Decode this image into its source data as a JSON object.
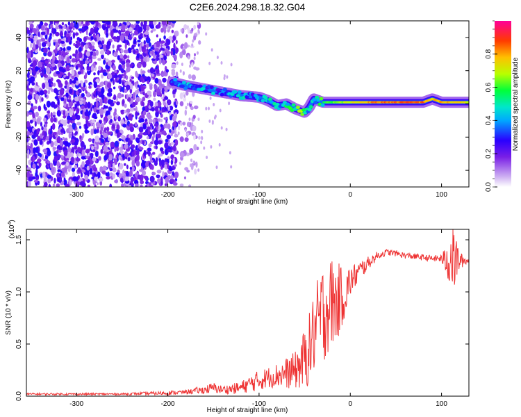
{
  "title": "C2E6.2024.298.18.32.G04",
  "chart_data": [
    {
      "type": "heatmap",
      "xlabel": "Height of straight line (km)",
      "ylabel": "Frequency (Hz)",
      "xlim": [
        -355,
        130
      ],
      "ylim": [
        -50,
        50
      ],
      "x_ticks": [
        -300,
        -200,
        -100,
        0,
        100
      ],
      "y_ticks": [
        -40,
        -20,
        0,
        20,
        40
      ],
      "colorbar": {
        "label": "Normalized spectral amplitude",
        "range": [
          0,
          1
        ],
        "ticks": [
          0.0,
          0.2,
          0.4,
          0.6,
          0.8
        ],
        "tick_labels": [
          "0.0",
          "0.2",
          "0.4",
          "0.6",
          "0.8"
        ],
        "colors": [
          "#ffffff",
          "#8a2be2",
          "#3b00ff",
          "#00aaff",
          "#00e5d0",
          "#00ff44",
          "#c8ff00",
          "#ffaa00",
          "#ff2200",
          "#ff0099"
        ]
      },
      "noise_region": {
        "x": [
          -355,
          -190
        ],
        "amplitude": [
          0.05,
          0.3
        ]
      },
      "signal_trace": {
        "x": [
          -195,
          -180,
          -160,
          -140,
          -120,
          -100,
          -90,
          -80,
          -70,
          -60,
          -55,
          -50,
          -45,
          -40,
          -35,
          -30,
          -20,
          -10,
          0,
          20,
          40,
          60,
          80,
          90,
          100,
          120,
          130
        ],
        "frequency": [
          13,
          11,
          9,
          7,
          5,
          4,
          2,
          -1,
          0,
          -3,
          -4,
          -5,
          -2,
          3,
          2,
          1,
          1,
          1,
          1,
          1,
          1,
          1,
          1,
          3,
          1,
          1,
          1
        ],
        "amplitude": [
          0.35,
          0.4,
          0.35,
          0.35,
          0.4,
          0.35,
          0.4,
          0.45,
          0.45,
          0.55,
          0.6,
          0.5,
          0.45,
          0.45,
          0.5,
          0.55,
          0.6,
          0.65,
          0.7,
          0.8,
          0.85,
          0.85,
          0.85,
          0.75,
          0.8,
          0.75,
          0.7
        ]
      }
    },
    {
      "type": "line",
      "xlabel": "Height of straight line (km)",
      "ylabel": "SNR (10 * v/v)",
      "y_multiplier": "(x10",
      "y_multiplier_exp": "4",
      "y_multiplier_close": ")",
      "xlim": [
        -355,
        130
      ],
      "ylim": [
        0,
        1.6
      ],
      "x_ticks": [
        -300,
        -200,
        -100,
        0,
        100
      ],
      "y_ticks": [
        0.0,
        0.5,
        1.0,
        1.5
      ],
      "y_tick_labels": [
        "0.0",
        "0.5",
        "1.0",
        "1.5"
      ],
      "color": "#ee3333",
      "series": [
        {
          "x": [
            -355,
            -300,
            -250,
            -200,
            -180,
            -160,
            -150,
            -140,
            -120,
            -110,
            -100,
            -90,
            -80,
            -70,
            -60,
            -50,
            -45,
            -40,
            -35,
            -30,
            -25,
            -20,
            -15,
            -10,
            -5,
            0,
            10,
            20,
            30,
            40,
            50,
            60,
            70,
            80,
            90,
            100,
            105,
            110,
            115,
            120,
            130
          ],
          "y": [
            0.02,
            0.02,
            0.02,
            0.03,
            0.04,
            0.06,
            0.08,
            0.06,
            0.08,
            0.12,
            0.15,
            0.18,
            0.2,
            0.22,
            0.25,
            0.35,
            0.45,
            0.6,
            0.7,
            0.8,
            0.85,
            0.9,
            0.9,
            0.95,
            1.0,
            1.1,
            1.2,
            1.28,
            1.35,
            1.38,
            1.37,
            1.35,
            1.34,
            1.33,
            1.32,
            1.32,
            1.3,
            1.32,
            1.3,
            1.3,
            1.3
          ],
          "spread": [
            0.01,
            0.01,
            0.01,
            0.02,
            0.02,
            0.04,
            0.05,
            0.04,
            0.06,
            0.08,
            0.1,
            0.1,
            0.12,
            0.15,
            0.18,
            0.3,
            0.35,
            0.4,
            0.45,
            0.5,
            0.45,
            0.45,
            0.4,
            0.3,
            0.25,
            0.15,
            0.1,
            0.06,
            0.04,
            0.03,
            0.03,
            0.03,
            0.03,
            0.03,
            0.03,
            0.04,
            0.15,
            0.3,
            0.3,
            0.08,
            0.03
          ]
        }
      ]
    }
  ]
}
